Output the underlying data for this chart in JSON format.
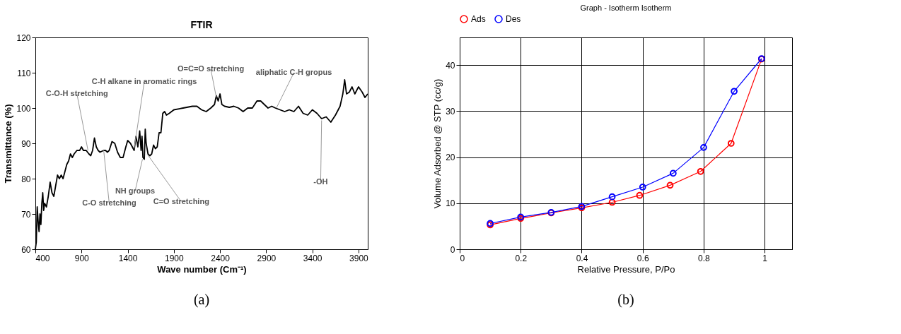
{
  "chart_data": [
    {
      "type": "line",
      "title": "FTIR",
      "xlabel": "Wave number (Cm⁻¹)",
      "ylabel": "Transmittance (%)",
      "xlim": [
        400,
        4000
      ],
      "ylim": [
        60,
        120
      ],
      "xticks": [
        400,
        900,
        1400,
        1900,
        2400,
        2900,
        3400,
        3900
      ],
      "yticks": [
        60,
        70,
        80,
        90,
        100,
        110,
        120
      ],
      "grid": false,
      "series": [
        {
          "color": "#000000",
          "x": [
            400,
            410,
            420,
            430,
            440,
            450,
            460,
            470,
            480,
            490,
            500,
            520,
            540,
            560,
            580,
            600,
            620,
            640,
            660,
            680,
            700,
            720,
            740,
            760,
            780,
            800,
            820,
            850,
            880,
            900,
            920,
            950,
            980,
            1000,
            1020,
            1040,
            1060,
            1080,
            1100,
            1140,
            1160,
            1180,
            1200,
            1230,
            1260,
            1290,
            1320,
            1350,
            1380,
            1400,
            1430,
            1450,
            1470,
            1490,
            1510,
            1530,
            1545,
            1555,
            1565,
            1580,
            1590,
            1600,
            1620,
            1640,
            1660,
            1680,
            1700,
            1720,
            1740,
            1760,
            1780,
            1800,
            1820,
            1850,
            1900,
            2000,
            2100,
            2150,
            2200,
            2250,
            2300,
            2340,
            2360,
            2380,
            2400,
            2420,
            2450,
            2500,
            2550,
            2600,
            2650,
            2700,
            2750,
            2800,
            2840,
            2880,
            2920,
            2960,
            3000,
            3050,
            3100,
            3150,
            3200,
            3250,
            3300,
            3350,
            3400,
            3450,
            3500,
            3550,
            3600,
            3650,
            3700,
            3730,
            3750,
            3770,
            3800,
            3830,
            3860,
            3900,
            3940,
            3970,
            4000
          ],
          "values": [
            60,
            62,
            72,
            68,
            65,
            70,
            67,
            73,
            76,
            71,
            73,
            72,
            75,
            79,
            76,
            75,
            78,
            81,
            80,
            81,
            80,
            82,
            84,
            85,
            87,
            86,
            87,
            88,
            88,
            89,
            88,
            88,
            87,
            86.5,
            88,
            91.5,
            89,
            88,
            87.5,
            88,
            88,
            87.5,
            88,
            90.5,
            90,
            87.5,
            86,
            86,
            89,
            90.8,
            90,
            89,
            88,
            92,
            89,
            93.5,
            88,
            92,
            86,
            85.5,
            94,
            90,
            87,
            86.5,
            87,
            89.5,
            88.5,
            89,
            93,
            93,
            98.5,
            99,
            98,
            98.5,
            99.5,
            100,
            100.5,
            100.5,
            99.5,
            99,
            100,
            101,
            103.5,
            102,
            104,
            101,
            100.5,
            100.2,
            100.5,
            100,
            99,
            100,
            100,
            102,
            102,
            101,
            100,
            100.5,
            100,
            99.5,
            99,
            99.5,
            99,
            100.5,
            98.5,
            98,
            99.5,
            98.5,
            97,
            97.5,
            96,
            98,
            100.5,
            104,
            108,
            104,
            104.5,
            106,
            104,
            106,
            104.5,
            103,
            104
          ]
        }
      ],
      "annotations": [
        {
          "text": "C-O-H stretching",
          "x": 970,
          "y": 88
        },
        {
          "text": "C-O stretching",
          "x": 1140,
          "y": 88
        },
        {
          "text": "C-H alkane in aromatic rings",
          "x": 1470,
          "y": 88.5
        },
        {
          "text": "NH groups",
          "x": 1560,
          "y": 85.5
        },
        {
          "text": "C=O stretching",
          "x": 1610,
          "y": 87
        },
        {
          "text": "O=C=O stretching",
          "x": 2360,
          "y": 103
        },
        {
          "text": "aliphatic C-H gropus",
          "x": 3010,
          "y": 100
        },
        {
          "text": "-OH",
          "x": 3500,
          "y": 96.5
        },
        "(a)"
      ]
    },
    {
      "type": "line",
      "title": "Graph - Isotherm Isotherm",
      "xlabel": "Relative Pressure, P/Po",
      "ylabel": "Volume Adsorbed @ STP (cc/g)",
      "xlim": [
        0,
        1.09
      ],
      "ylim": [
        0,
        46
      ],
      "xticks": [
        0,
        0.2,
        0.4,
        0.6,
        0.8,
        1
      ],
      "yticks": [
        0,
        10,
        20,
        30,
        40
      ],
      "grid": true,
      "legend": "top",
      "marker": "circle",
      "series": [
        {
          "name": "Ads",
          "color": "#ff0000",
          "x": [
            0.1,
            0.2,
            0.3,
            0.4,
            0.5,
            0.59,
            0.69,
            0.79,
            0.89,
            0.99
          ],
          "values": [
            5.3,
            6.7,
            7.9,
            9.0,
            10.2,
            11.7,
            13.9,
            16.9,
            23.0,
            41.3
          ]
        },
        {
          "name": "Des",
          "color": "#0000ff",
          "x": [
            0.1,
            0.2,
            0.3,
            0.4,
            0.5,
            0.6,
            0.7,
            0.8,
            0.9,
            0.99
          ],
          "values": [
            5.6,
            7.0,
            8.0,
            9.3,
            11.4,
            13.5,
            16.5,
            22.1,
            34.3,
            41.4
          ]
        }
      ],
      "annotations": [
        "(b)"
      ]
    }
  ]
}
